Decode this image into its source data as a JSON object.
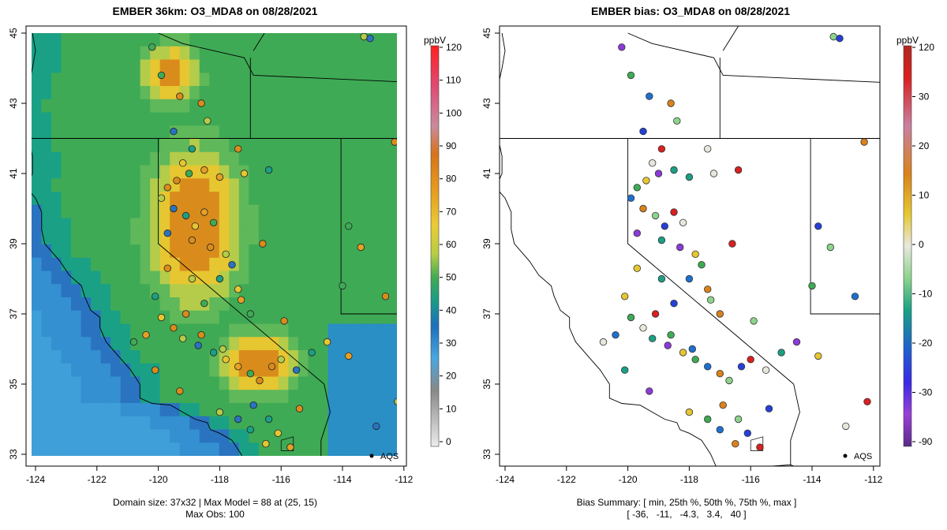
{
  "left_panel": {
    "title": "EMBER 36km: O3_MDA8 on 08/28/2021",
    "footer_line1": "Domain size: 37x32 | Max Model = 88 at (25, 15)",
    "footer_line2": "Max Obs: 100",
    "colorbar_unit": "ppbV",
    "colorbar_ticks": [
      "120",
      "110",
      "100",
      "90",
      "80",
      "70",
      "60",
      "50",
      "40",
      "30",
      "20",
      "10",
      "0"
    ],
    "marker_label": "AQS"
  },
  "right_panel": {
    "title": "EMBER bias: O3_MDA8 on 08/28/2021",
    "footer_line1": "Bias Summary: [ min, 25th %, 50th %, 75th %, max ]",
    "footer_line2": "[ -36,   -11,   -4.3,   3.4,   40 ]",
    "colorbar_unit": "ppbV",
    "colorbar_ticks": [
      "120",
      "30",
      "20",
      "10",
      "0",
      "-10",
      "-20",
      "-30",
      "-90"
    ],
    "marker_label": "AQS"
  },
  "axes": {
    "x_ticks": [
      "-124",
      "-122",
      "-120",
      "-118",
      "-116",
      "-114",
      "-112"
    ],
    "y_ticks": [
      "45",
      "43",
      "41",
      "39",
      "37",
      "35",
      "33"
    ],
    "lon_range": [
      -124.3,
      -111.8
    ],
    "lat_range": [
      32.7,
      45.2
    ]
  },
  "colors": {
    "offshore": "#3f9fd9",
    "coastal_blue": "#2a73c0",
    "teal": "#1aa085",
    "green": "#3faa55",
    "yellow_green": "#b4cc4a",
    "yellow": "#e6c631",
    "orange": "#d98c1c",
    "border_line": "#000000"
  }
}
